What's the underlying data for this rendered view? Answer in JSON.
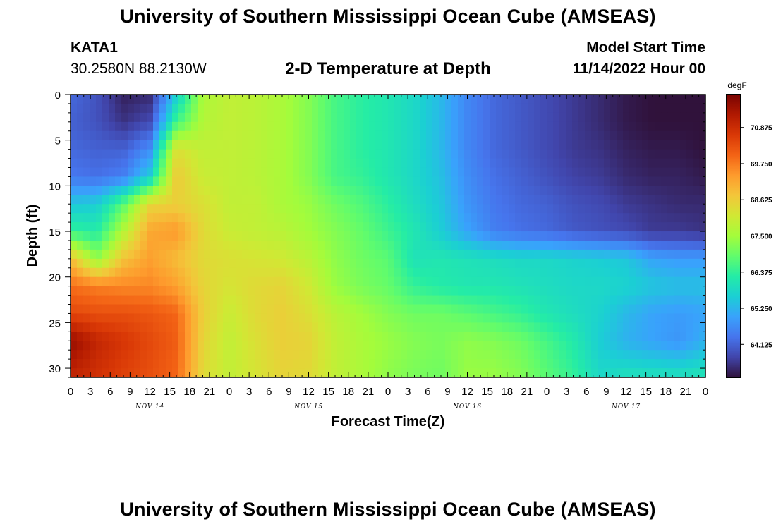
{
  "header": {
    "title": "University of Southern Mississippi Ocean Cube (AMSEAS)",
    "station_id": "KATA1",
    "station_coords": "30.2580N  88.2130W",
    "product_title": "2-D Temperature at Depth",
    "model_start_label": "Model Start Time",
    "model_start_value": "11/14/2022 Hour 00"
  },
  "footer": {
    "title": "University of Southern Mississippi Ocean Cube (AMSEAS)"
  },
  "colors": {
    "colormap": [
      "#30123b",
      "#4145ab",
      "#4675ed",
      "#39a2fc",
      "#1bcfd4",
      "#24eca6",
      "#61fc6c",
      "#a4fc3b",
      "#d1e834",
      "#f3c63a",
      "#fe9b2d",
      "#f36315",
      "#d93806",
      "#b11901",
      "#7a0402"
    ]
  },
  "chart_data": {
    "type": "heatmap",
    "xlabel": "Forecast Time(Z)",
    "ylabel": "Depth (ft)",
    "colorbar_unit": "degF",
    "colorbar_ticks": [
      "70.875",
      "69.750",
      "68.625",
      "67.500",
      "66.375",
      "65.250",
      "64.125"
    ],
    "colorbar_tick_values": [
      70.875,
      69.75,
      68.625,
      67.5,
      66.375,
      65.25,
      64.125
    ],
    "value_range": [
      63.1,
      71.9
    ],
    "x_tick_labels": [
      "0",
      "3",
      "6",
      "9",
      "12",
      "15",
      "18",
      "21",
      "0",
      "3",
      "6",
      "9",
      "12",
      "15",
      "18",
      "21",
      "0",
      "3",
      "6",
      "9",
      "12",
      "15",
      "18",
      "21",
      "0",
      "3",
      "6",
      "9",
      "12",
      "15",
      "18",
      "21",
      "0"
    ],
    "x_range_hours": [
      0,
      96
    ],
    "day_labels": [
      {
        "label": "NOV 14",
        "hour": 12
      },
      {
        "label": "NOV 15",
        "hour": 36
      },
      {
        "label": "NOV 16",
        "hour": 60
      },
      {
        "label": "NOV 17",
        "hour": 84
      }
    ],
    "y_tick_labels": [
      "0",
      "5",
      "10",
      "15",
      "20",
      "25",
      "30"
    ],
    "y_tick_values": [
      0,
      5,
      10,
      15,
      20,
      25,
      30
    ],
    "y_range_ft": [
      0,
      31
    ],
    "y_inverted": true,
    "grid": false,
    "sample_hours": [
      0,
      4,
      8,
      12,
      16,
      20,
      24,
      28,
      32,
      36,
      40,
      44,
      48,
      52,
      56,
      60,
      64,
      68,
      72,
      76,
      80,
      84,
      88,
      92,
      96
    ],
    "sample_depths_ft": [
      0,
      3,
      6,
      9,
      12,
      15,
      18,
      21,
      24,
      27,
      31
    ],
    "values_by_depth": [
      [
        64.2,
        63.9,
        63.3,
        63.4,
        65.6,
        67.6,
        67.9,
        67.8,
        67.6,
        67.2,
        66.6,
        66.3,
        66.1,
        65.8,
        65.3,
        64.6,
        64.2,
        64.0,
        63.8,
        63.6,
        63.4,
        63.2,
        63.1,
        63.1,
        63.1
      ],
      [
        64.1,
        63.9,
        63.5,
        63.8,
        66.5,
        67.7,
        67.9,
        67.8,
        67.6,
        67.2,
        66.6,
        66.3,
        66.1,
        65.8,
        65.3,
        64.6,
        64.2,
        64.0,
        63.8,
        63.6,
        63.4,
        63.2,
        63.1,
        63.1,
        63.1
      ],
      [
        64.2,
        64.1,
        64.1,
        64.7,
        68.3,
        67.9,
        67.9,
        67.8,
        67.6,
        67.2,
        66.6,
        66.3,
        66.1,
        65.8,
        65.3,
        64.6,
        64.2,
        64.0,
        63.8,
        63.6,
        63.5,
        63.3,
        63.2,
        63.2,
        63.1
      ],
      [
        64.4,
        64.3,
        64.5,
        65.6,
        68.7,
        68.0,
        67.9,
        67.8,
        67.6,
        67.2,
        66.6,
        66.4,
        66.1,
        65.8,
        65.4,
        64.7,
        64.3,
        64.1,
        63.9,
        63.7,
        63.6,
        63.4,
        63.3,
        63.3,
        63.2
      ],
      [
        65.5,
        65.6,
        66.8,
        68.5,
        68.6,
        68.3,
        67.9,
        67.9,
        67.6,
        67.4,
        67.0,
        66.7,
        66.3,
        65.9,
        65.5,
        64.8,
        64.4,
        64.2,
        64.1,
        63.9,
        63.8,
        63.6,
        63.5,
        63.4,
        63.4
      ],
      [
        66.4,
        66.2,
        67.7,
        69.2,
        69.4,
        68.4,
        68.0,
        67.9,
        67.8,
        67.5,
        67.2,
        66.9,
        66.5,
        66.1,
        65.6,
        65.0,
        64.5,
        64.3,
        64.2,
        64.0,
        63.9,
        63.8,
        63.6,
        63.6,
        63.5
      ],
      [
        68.9,
        67.3,
        68.8,
        69.3,
        68.9,
        68.4,
        68.3,
        68.2,
        68.1,
        67.8,
        67.3,
        67.0,
        66.8,
        66.0,
        66.1,
        66.0,
        65.9,
        65.8,
        65.8,
        65.7,
        65.6,
        65.5,
        65.0,
        64.9,
        64.9
      ],
      [
        69.9,
        69.7,
        69.6,
        69.6,
        69.3,
        68.5,
        68.2,
        68.4,
        68.5,
        68.1,
        67.4,
        67.1,
        66.9,
        66.4,
        66.2,
        66.1,
        66.1,
        66.0,
        65.9,
        65.8,
        65.8,
        65.7,
        65.5,
        65.4,
        65.4
      ],
      [
        70.4,
        70.3,
        70.3,
        70.2,
        70.0,
        68.6,
        68.0,
        68.4,
        68.6,
        68.3,
        67.8,
        67.5,
        67.2,
        67.0,
        67.0,
        66.8,
        66.6,
        66.4,
        66.1,
        65.9,
        65.7,
        65.3,
        65.0,
        64.9,
        65.0
      ],
      [
        71.6,
        71.0,
        70.7,
        70.4,
        70.1,
        68.5,
        67.9,
        68.3,
        68.6,
        68.5,
        67.9,
        67.6,
        67.4,
        67.2,
        67.1,
        67.3,
        67.2,
        67.0,
        66.6,
        66.2,
        65.6,
        65.2,
        65.0,
        64.8,
        65.2
      ],
      [
        71.0,
        70.8,
        70.5,
        70.3,
        70.0,
        68.4,
        67.9,
        68.2,
        68.5,
        68.4,
        67.9,
        67.6,
        67.3,
        67.1,
        67.0,
        67.4,
        67.4,
        67.2,
        66.8,
        66.4,
        65.8,
        66.0,
        66.0,
        66.0,
        66.1
      ]
    ]
  }
}
